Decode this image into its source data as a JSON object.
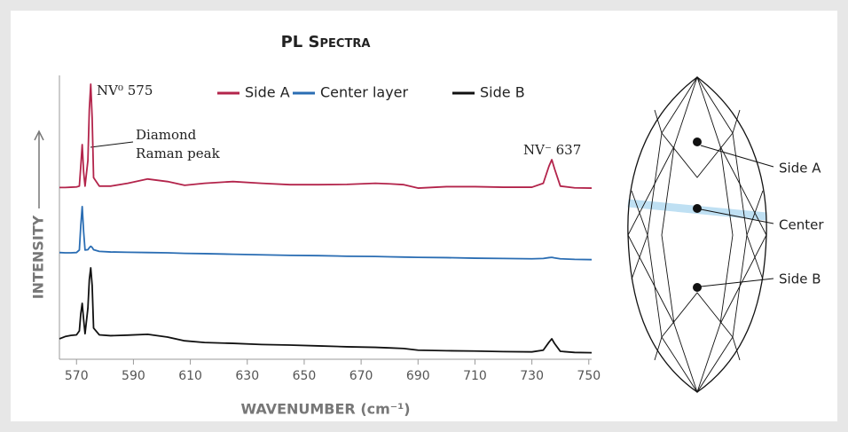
{
  "chart_data": {
    "type": "line",
    "title": "PL Spectra",
    "xlabel": "WAVENUMBER (cm⁻¹)",
    "ylabel": "INTENSITY",
    "xlim": [
      564,
      751
    ],
    "ylim": [
      0,
      100
    ],
    "xticks": [
      570,
      590,
      610,
      630,
      650,
      670,
      690,
      710,
      730,
      750
    ],
    "legend": "top",
    "x": [
      564,
      566,
      568,
      570,
      571,
      571.5,
      572,
      572.5,
      573,
      574,
      574.5,
      575,
      575.5,
      576,
      578,
      582,
      588,
      595,
      602,
      608,
      615,
      625,
      635,
      645,
      655,
      665,
      675,
      680,
      685,
      690,
      700,
      710,
      720,
      730,
      734,
      736,
      737,
      738,
      740,
      745,
      751
    ],
    "series": [
      {
        "name": "Side A",
        "color": "#b3244b",
        "values": [
          60.5,
          60.5,
          60.6,
          60.7,
          61,
          68,
          75.6,
          66,
          61,
          70,
          88,
          96.9,
          85,
          64,
          61,
          61,
          62,
          63.5,
          62.6,
          61.3,
          62,
          62.6,
          62,
          61.5,
          61.5,
          61.6,
          62,
          61.8,
          61.5,
          60.3,
          60.8,
          60.8,
          60.6,
          60.6,
          62,
          68,
          70.3,
          67,
          61,
          60.4,
          60.3
        ]
      },
      {
        "name": "Center layer",
        "color": "#2a6db3",
        "values": [
          37.6,
          37.5,
          37.5,
          37.6,
          38.5,
          47,
          53.8,
          45,
          38.5,
          38.6,
          39.3,
          39.8,
          39.4,
          38.6,
          38,
          37.8,
          37.7,
          37.6,
          37.5,
          37.3,
          37.2,
          37,
          36.8,
          36.6,
          36.5,
          36.3,
          36.2,
          36.1,
          36,
          35.9,
          35.8,
          35.6,
          35.5,
          35.4,
          35.5,
          35.8,
          35.9,
          35.7,
          35.4,
          35.2,
          35.1
        ]
      },
      {
        "name": "Side B",
        "color": "#111111",
        "values": [
          7.2,
          8,
          8.4,
          8.6,
          10,
          16,
          19.7,
          14,
          9,
          18,
          28,
          32.2,
          26,
          11,
          8.6,
          8.3,
          8.5,
          8.8,
          7.8,
          6.5,
          5.9,
          5.6,
          5.2,
          5,
          4.7,
          4.4,
          4.2,
          4,
          3.8,
          3.2,
          3,
          2.9,
          2.7,
          2.6,
          3.2,
          6,
          7.2,
          5.5,
          2.8,
          2.4,
          2.3
        ]
      }
    ],
    "annotations": [
      {
        "text": "NV⁰ 575"
      },
      {
        "text": [
          "Diamond",
          "Raman peak"
        ]
      },
      {
        "text": "NV⁻ 637"
      }
    ]
  },
  "diagram": {
    "labels": [
      "Side A",
      "Center",
      "Side B"
    ]
  }
}
